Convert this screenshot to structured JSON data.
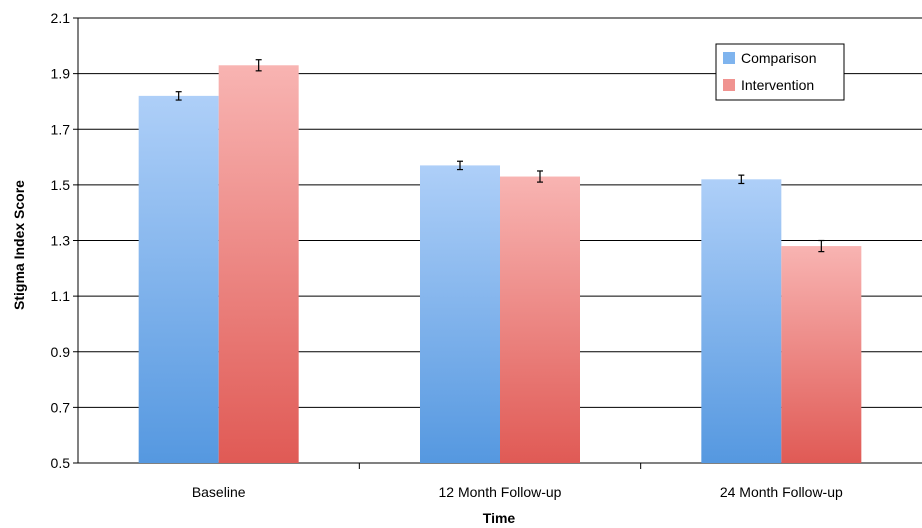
{
  "chart_data": {
    "type": "bar",
    "categories": [
      "Baseline",
      "12 Month Follow-up",
      "24 Month Follow-up"
    ],
    "series": [
      {
        "name": "Comparison",
        "values": [
          1.82,
          1.57,
          1.52
        ],
        "errors": [
          0.015,
          0.015,
          0.015
        ],
        "color_top": "#aecff8",
        "color_bottom": "#5598e0"
      },
      {
        "name": "Intervention",
        "values": [
          1.93,
          1.53,
          1.28
        ],
        "errors": [
          0.02,
          0.02,
          0.02
        ],
        "color_top": "#f8b4b2",
        "color_bottom": "#e05a55"
      }
    ],
    "title": "",
    "xlabel": "Time",
    "ylabel": "Stigma Index Score",
    "ylim": [
      0.5,
      2.1
    ],
    "yticks": [
      "0.5",
      "0.7",
      "0.9",
      "1.1",
      "1.3",
      "1.5",
      "1.7",
      "1.9",
      "2.1"
    ],
    "grid": true,
    "legend_position": "top-right"
  }
}
